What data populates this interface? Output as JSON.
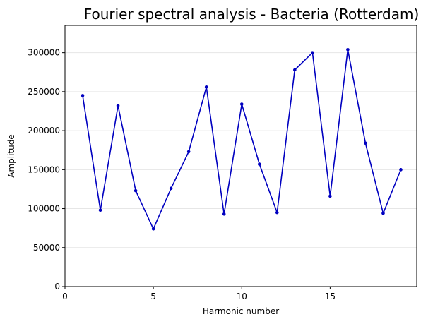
{
  "chart_data": {
    "type": "line",
    "title": "Fourier spectral analysis - Bacteria (Rotterdam)",
    "xlabel": "Harmonic number",
    "ylabel": "Amplitude",
    "xlim": [
      0,
      19.9
    ],
    "ylim": [
      0,
      335000
    ],
    "xticks": [
      0,
      5,
      10,
      15
    ],
    "yticks": [
      0,
      50000,
      100000,
      150000,
      200000,
      250000,
      300000
    ],
    "grid": "horizontal",
    "line_color": "#0000c0",
    "series": [
      {
        "x": [
          1,
          2,
          3,
          4,
          5,
          6,
          7,
          8,
          9,
          10,
          11,
          12,
          13,
          14,
          15,
          16,
          17,
          18,
          19
        ],
        "values": [
          245000,
          98000,
          232000,
          123000,
          74000,
          126000,
          173000,
          256000,
          93000,
          234000,
          157000,
          95000,
          278000,
          300000,
          116000,
          304000,
          184000,
          94000,
          150000
        ]
      }
    ]
  }
}
